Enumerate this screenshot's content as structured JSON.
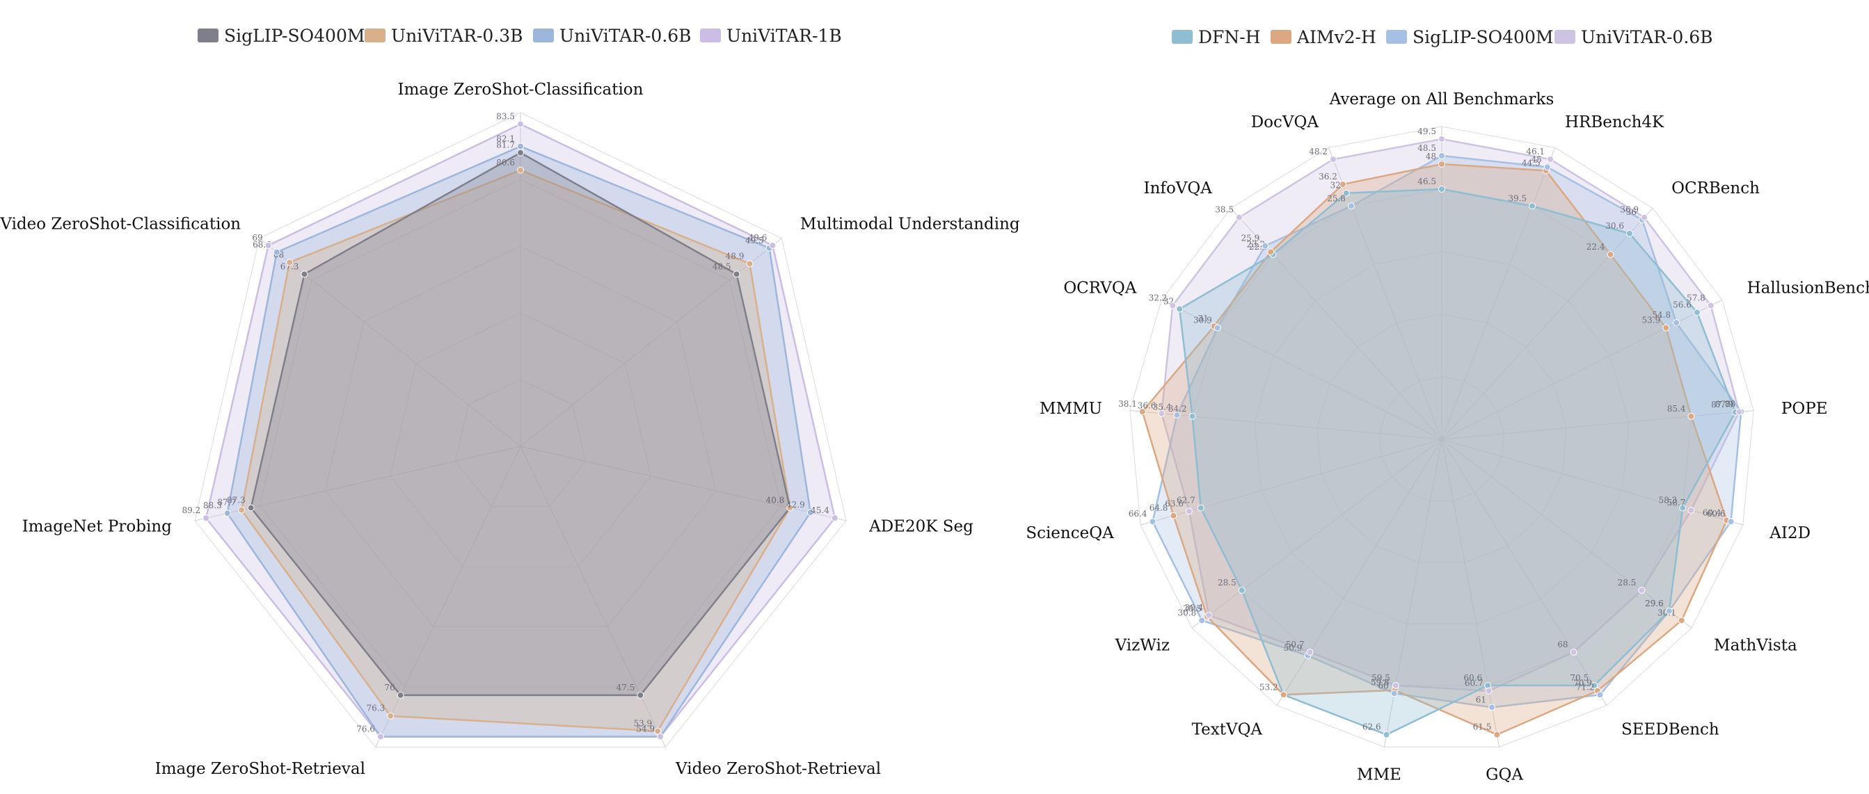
{
  "chart_data": [
    {
      "type": "radar",
      "title": "",
      "axes": [
        "Image ZeroShot-Classification",
        "Multimodal Understanding",
        "ADE20K Seg",
        "Video ZeroShot-Retrieval",
        "Image ZeroShot-Retrieval",
        "ImageNet Probing",
        "Video ZeroShot-Classification"
      ],
      "series": [
        {
          "name": "SigLIP-SO400M",
          "color": "#7f7f8c",
          "values": [
            81.7,
            48.5,
            40.8,
            47.5,
            76,
            87.3,
            67.3
          ]
        },
        {
          "name": "UniViTAR-0.3B",
          "color": "#d8b08c",
          "values": [
            80.6,
            48.9,
            40.8,
            53.9,
            76.3,
            87.7,
            68
          ]
        },
        {
          "name": "UniViTAR-0.6B",
          "color": "#9db6dc",
          "values": [
            82.1,
            49.5,
            42.9,
            54.9,
            76.6,
            88.3,
            68.6
          ]
        },
        {
          "name": "UniViTAR-1B",
          "color": "#cbbde3",
          "values": [
            83.5,
            49.6,
            45.4,
            null,
            null,
            89.2,
            69
          ]
        }
      ],
      "legend": "top"
    },
    {
      "type": "radar",
      "title": "",
      "axes": [
        "Average on All Benchmarks",
        "HRBench4K",
        "OCRBench",
        "HallusionBench",
        "POPE",
        "AI2D",
        "MathVista",
        "SEEDBench",
        "GQA",
        "MME",
        "TextVQA",
        "VizWiz",
        "ScienceQA",
        "MMMU",
        "OCRVQA",
        "InfoVQA",
        "DocVQA"
      ],
      "series": [
        {
          "name": "DFN-H",
          "color": "#8fbdd1",
          "values": [
            46.5,
            39.5,
            30.6,
            56.6,
            87.7,
            58.3,
            29.6,
            70.5,
            60.6,
            62.6,
            null,
            28.5,
            62.7,
            34.2,
            32,
            22.1,
            32
          ]
        },
        {
          "name": "AIMv2-H",
          "color": "#dba882",
          "values": [
            48,
            44.5,
            22.4,
            53.9,
            85.4,
            60.4,
            30.1,
            70.9,
            61.5,
            59.8,
            53.2,
            30.5,
            64.8,
            38.1,
            31,
            23.2,
            36.2
          ]
        },
        {
          "name": "SigLIP-SO400M",
          "color": "#a6c0e3",
          "values": [
            48.5,
            45,
            36,
            54.8,
            88,
            60.6,
            29.6,
            71.2,
            61,
            60,
            50.9,
            30.8,
            66.4,
            35.4,
            30.9,
            25.9,
            25.8
          ]
        },
        {
          "name": "UniViTAR-0.6B",
          "color": "#cfc3e3",
          "values": [
            49.5,
            46.1,
            36.9,
            57.8,
            87.9,
            58.7,
            28.5,
            68,
            60.7,
            59.5,
            50.7,
            30.4,
            63.6,
            36.6,
            32.2,
            38.5,
            48.2
          ]
        }
      ],
      "legend": "top"
    }
  ]
}
